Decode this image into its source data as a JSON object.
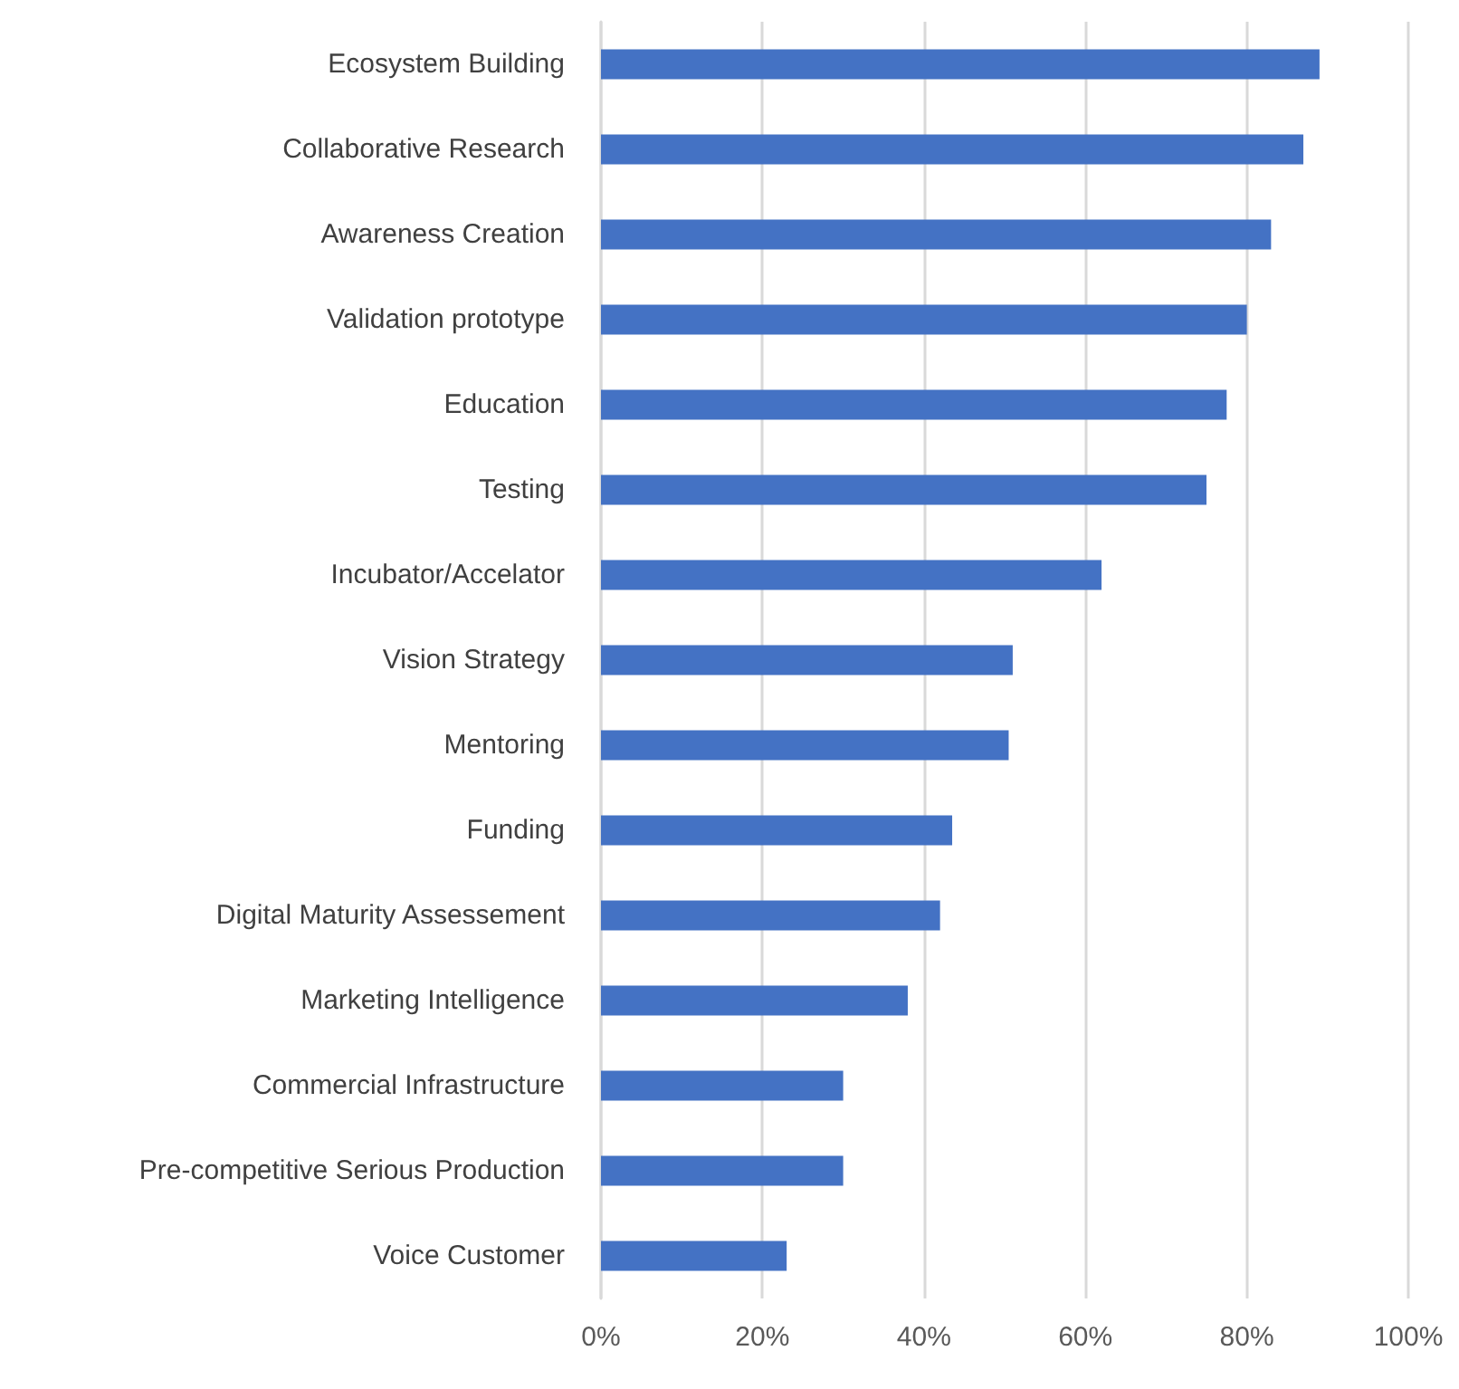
{
  "chart_data": {
    "type": "bar",
    "orientation": "horizontal",
    "categories": [
      "Ecosystem Building",
      "Collaborative Research",
      "Awareness Creation",
      "Validation prototype",
      "Education",
      "Testing",
      "Incubator/Accelator",
      "Vision Strategy",
      "Mentoring",
      "Funding",
      "Digital Maturity Assessement",
      "Marketing Intelligence",
      "Commercial Infrastructure",
      "Pre-competitive Serious Production",
      "Voice Customer"
    ],
    "values": [
      89,
      87,
      83,
      80,
      77.5,
      75,
      62,
      51,
      50.5,
      43.5,
      42,
      38,
      30,
      30,
      23
    ],
    "color": "#4472c4",
    "xlim": [
      0,
      100
    ],
    "xticks": [
      {
        "value": 0,
        "label": "0%"
      },
      {
        "value": 20,
        "label": "20%"
      },
      {
        "value": 40,
        "label": "40%"
      },
      {
        "value": 60,
        "label": "60%"
      },
      {
        "value": 80,
        "label": "80%"
      },
      {
        "value": 100,
        "label": "100%"
      }
    ],
    "grid": "x"
  }
}
